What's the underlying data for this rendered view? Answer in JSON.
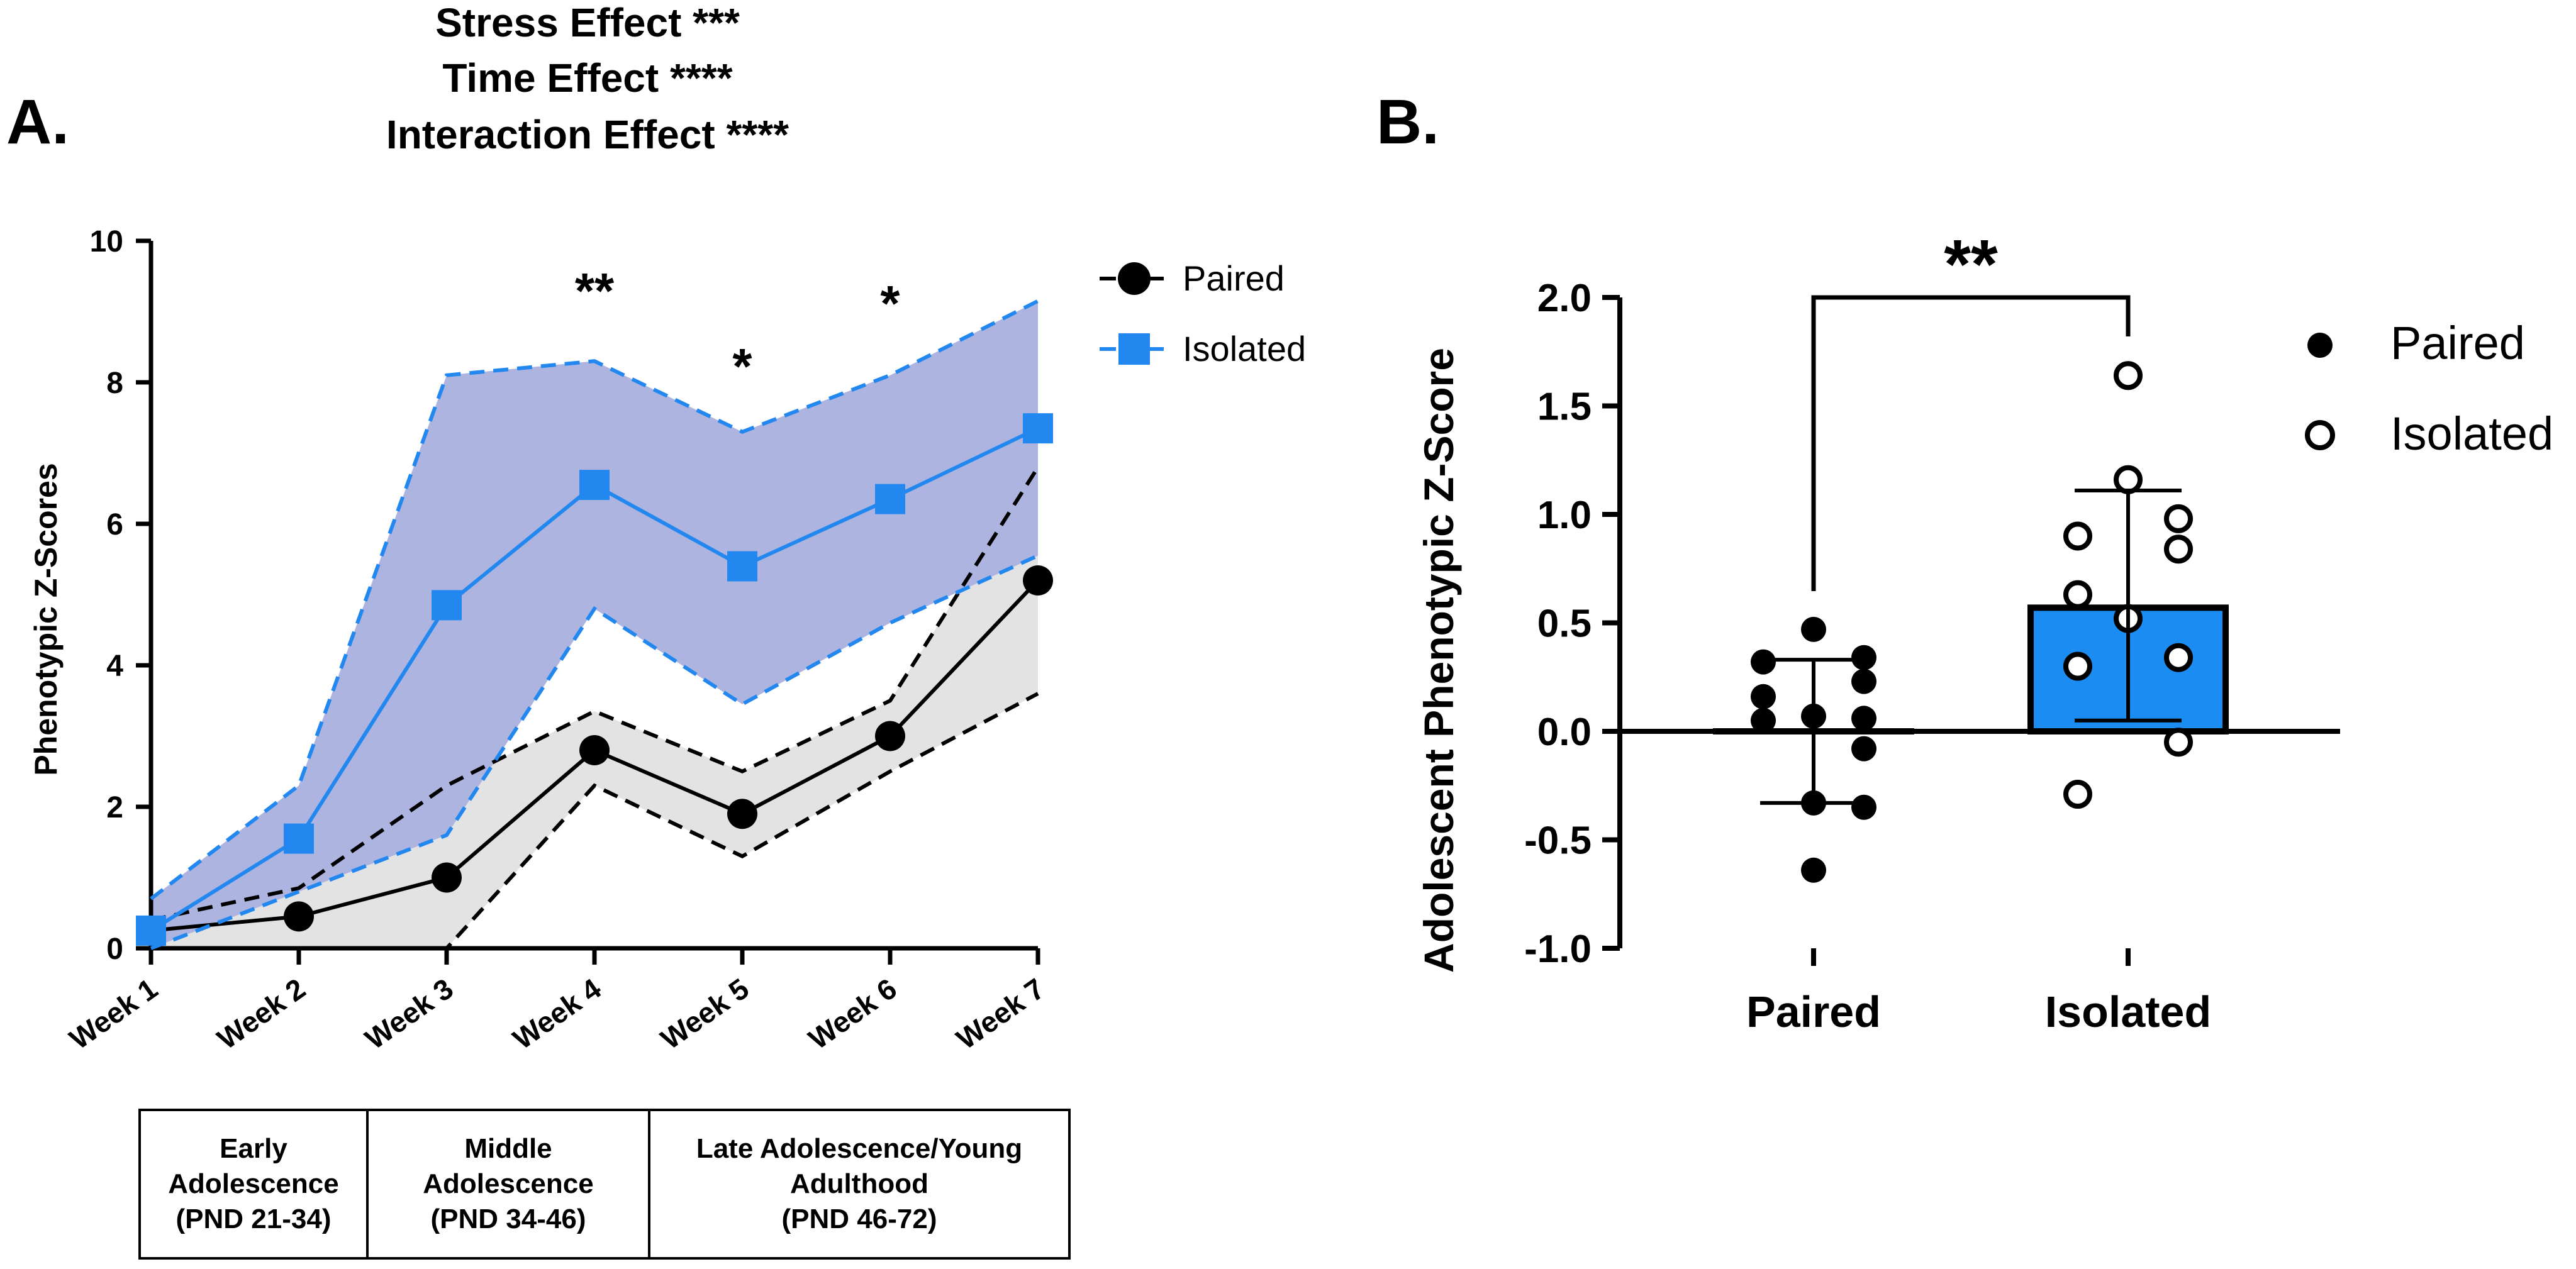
{
  "chart_data": [
    {
      "type": "line",
      "panel_label": "A.",
      "title_lines": [
        "Stress Effect ***",
        "Time Effect ****",
        "Interaction Effect ****"
      ],
      "ylabel": "Phenotypic Z-Scores",
      "xlabel": "",
      "ylim": [
        0,
        10
      ],
      "yticks": [
        "0",
        "2",
        "4",
        "6",
        "8",
        "10"
      ],
      "categories": [
        "Week 1",
        "Week 2",
        "Week 3",
        "Week 4",
        "Week 5",
        "Week 6",
        "Week 7"
      ],
      "series": [
        {
          "name": "Paired",
          "color": "#000000",
          "marker": "circle",
          "values": [
            0.25,
            0.45,
            1.0,
            2.8,
            1.9,
            3.0,
            5.2
          ],
          "upper": [
            0.4,
            0.85,
            2.3,
            3.35,
            2.5,
            3.5,
            6.8
          ],
          "lower": [
            0.0,
            0.0,
            0.0,
            2.3,
            1.3,
            2.5,
            3.6
          ],
          "band_color": "#e3e3e3"
        },
        {
          "name": "Isolated",
          "color": "#2288f0",
          "marker": "square",
          "values": [
            0.25,
            1.55,
            4.85,
            6.55,
            5.4,
            6.35,
            7.35
          ],
          "upper": [
            0.7,
            2.3,
            8.1,
            8.3,
            7.3,
            8.1,
            9.15
          ],
          "lower": [
            0.0,
            0.8,
            1.6,
            4.8,
            3.45,
            4.6,
            5.55
          ],
          "band_color": "#aeb4e0"
        }
      ],
      "significance": [
        {
          "category": "Week 4",
          "label": "**"
        },
        {
          "category": "Week 5",
          "label": "*"
        },
        {
          "category": "Week 6",
          "label": "*"
        }
      ],
      "legend": [
        "Paired",
        "Isolated"
      ],
      "periods": [
        {
          "label": "Early\nAdolescence\n(PND 21-34)"
        },
        {
          "label": "Middle\nAdolescence\n(PND 34-46)"
        },
        {
          "label": "Late Adolescence/Young\nAdulthood\n(PND 46-72)"
        }
      ]
    },
    {
      "type": "bar",
      "panel_label": "B.",
      "ylabel": "Adolescent Phenotypic Z-Score",
      "xlabel": "",
      "ylim": [
        -1.0,
        2.0
      ],
      "yticks": [
        "-1.0",
        "-0.5",
        "0.0",
        "0.5",
        "1.0",
        "1.5",
        "2.0"
      ],
      "categories": [
        "Paired",
        "Isolated"
      ],
      "values": [
        0.0,
        0.57
      ],
      "error_upper": [
        0.33,
        1.11
      ],
      "error_lower": [
        -0.33,
        0.05
      ],
      "bar_colors": [
        "#ffffff",
        "#1a8cf2"
      ],
      "points": [
        [
          0.47,
          0.34,
          0.32,
          0.23,
          0.16,
          0.07,
          0.06,
          0.05,
          -0.08,
          -0.33,
          -0.35,
          -0.64
        ],
        [
          1.64,
          1.16,
          0.98,
          0.9,
          0.84,
          0.63,
          0.52,
          0.34,
          0.3,
          -0.05,
          -0.29
        ]
      ],
      "significance": {
        "label": "**",
        "between": [
          "Paired",
          "Isolated"
        ]
      },
      "legend": [
        "Paired",
        "Isolated"
      ]
    }
  ]
}
